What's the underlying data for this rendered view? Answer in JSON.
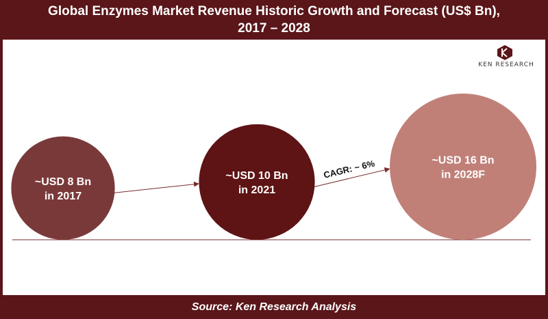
{
  "header": {
    "title_line1": "Global Enzymes Market Revenue Historic Growth and Forecast (US$ Bn),",
    "title_line2": "2017 – 2028"
  },
  "logo": {
    "brand": "KEN RESEARCH"
  },
  "footer": {
    "source": "Source: Ken Research Analysis"
  },
  "chart_data": {
    "type": "bubble",
    "title": "Global Enzymes Market Revenue Historic Growth and Forecast (US$ Bn), 2017 – 2028",
    "categories": [
      "2017",
      "2021",
      "2028F"
    ],
    "values": [
      8,
      10,
      16
    ],
    "units": "US$ Bn",
    "labels": [
      [
        "~USD 8 Bn",
        "in 2017"
      ],
      [
        "~USD 10 Bn",
        "in 2021"
      ],
      [
        "~USD 16 Bn",
        "in 2028F"
      ]
    ],
    "colors": [
      "#7a3939",
      "#5e1314",
      "#c08078"
    ],
    "annotation": "CAGR: ~ 6%",
    "baseline_color": "#7a2b2b"
  }
}
